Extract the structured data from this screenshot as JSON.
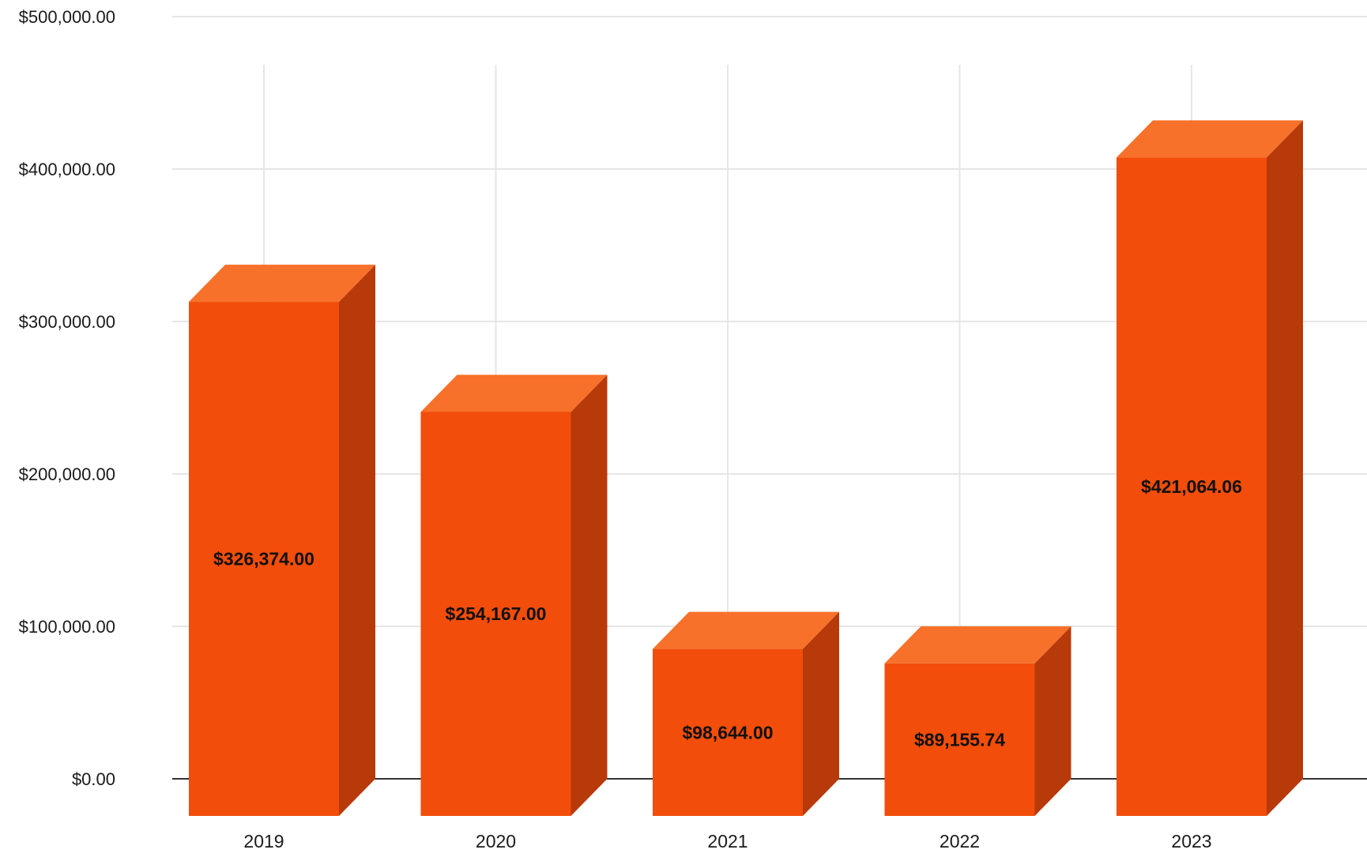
{
  "chart_data": {
    "type": "bar",
    "title": "",
    "xlabel": "",
    "ylabel": "",
    "categories": [
      "2019",
      "2020",
      "2021",
      "2022",
      "2023"
    ],
    "values": [
      326374.0,
      254167.0,
      98644.0,
      89155.74,
      421064.06
    ],
    "value_labels": [
      "$326,374.00",
      "$254,167.00",
      "$98,644.00",
      "$89,155.74",
      "$421,064.06"
    ],
    "ylim": [
      0,
      500000
    ],
    "yticks": [
      0,
      100000,
      200000,
      300000,
      400000,
      500000
    ],
    "ytick_labels": [
      "$0.00",
      "$100,000.00",
      "$200,000.00",
      "$300,000.00",
      "$400,000.00",
      "$500,000.00"
    ],
    "grid": true,
    "style": "3d-bars",
    "colors": {
      "front": "#f24d0a",
      "top": "#f7712a",
      "side": "#b8390a",
      "grid": "#e6e6e6",
      "baseline": "#333333"
    }
  }
}
